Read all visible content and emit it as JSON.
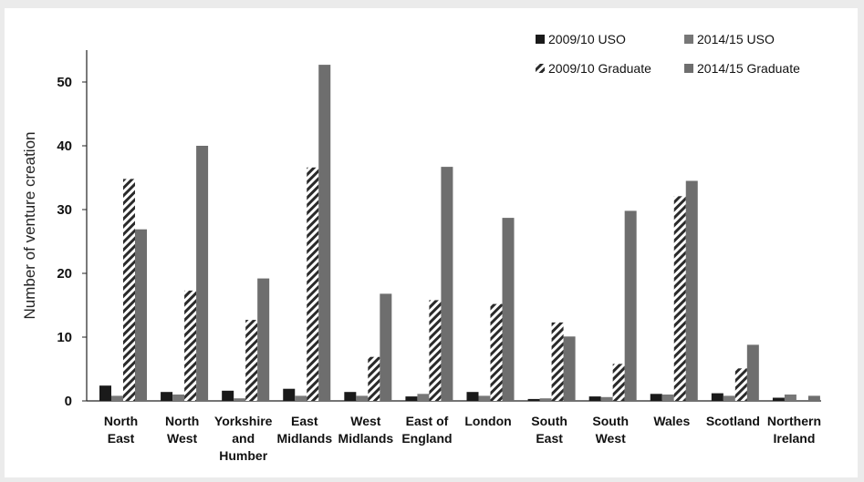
{
  "chart_data": {
    "type": "bar",
    "title": "",
    "xlabel": "",
    "ylabel": "Number of venture creation",
    "ylim": [
      0,
      55
    ],
    "yticks": [
      0,
      10,
      20,
      30,
      40,
      50
    ],
    "grid": false,
    "legend_position": "top-right",
    "categories": [
      [
        "North",
        "East"
      ],
      [
        "North",
        "West"
      ],
      [
        "Yorkshire",
        "and",
        "Humber"
      ],
      [
        "East",
        "Midlands"
      ],
      [
        "West",
        "Midlands"
      ],
      [
        "East of",
        "England"
      ],
      [
        "London"
      ],
      [
        "South",
        "East"
      ],
      [
        "South",
        "West"
      ],
      [
        "Wales"
      ],
      [
        "Scotland"
      ],
      [
        "Northern",
        "Ireland"
      ]
    ],
    "series": [
      {
        "name": "2009/10 USO",
        "pattern": "solid-dark",
        "color": "#1a1a1a",
        "values": [
          2.4,
          1.4,
          1.6,
          1.9,
          1.4,
          0.7,
          1.4,
          0.3,
          0.7,
          1.1,
          1.2,
          0.5
        ]
      },
      {
        "name": "2014/15 USO",
        "pattern": "solid-gray",
        "color": "#777777",
        "values": [
          0.8,
          1.0,
          0.4,
          0.8,
          0.8,
          1.1,
          0.8,
          0.4,
          0.6,
          1.0,
          0.8,
          1.0
        ]
      },
      {
        "name": "2009/10 Graduate",
        "pattern": "diagonal-hatch",
        "color": "#333333",
        "values": [
          34.8,
          17.3,
          12.7,
          36.6,
          6.9,
          15.8,
          15.2,
          12.3,
          5.8,
          32.1,
          5.1,
          0
        ]
      },
      {
        "name": "2014/15 Graduate",
        "pattern": "solid-gray",
        "color": "#6e6e6e",
        "values": [
          26.9,
          40.0,
          19.2,
          52.7,
          16.8,
          36.7,
          28.7,
          10.1,
          29.8,
          34.5,
          8.8,
          0.8
        ]
      }
    ]
  }
}
